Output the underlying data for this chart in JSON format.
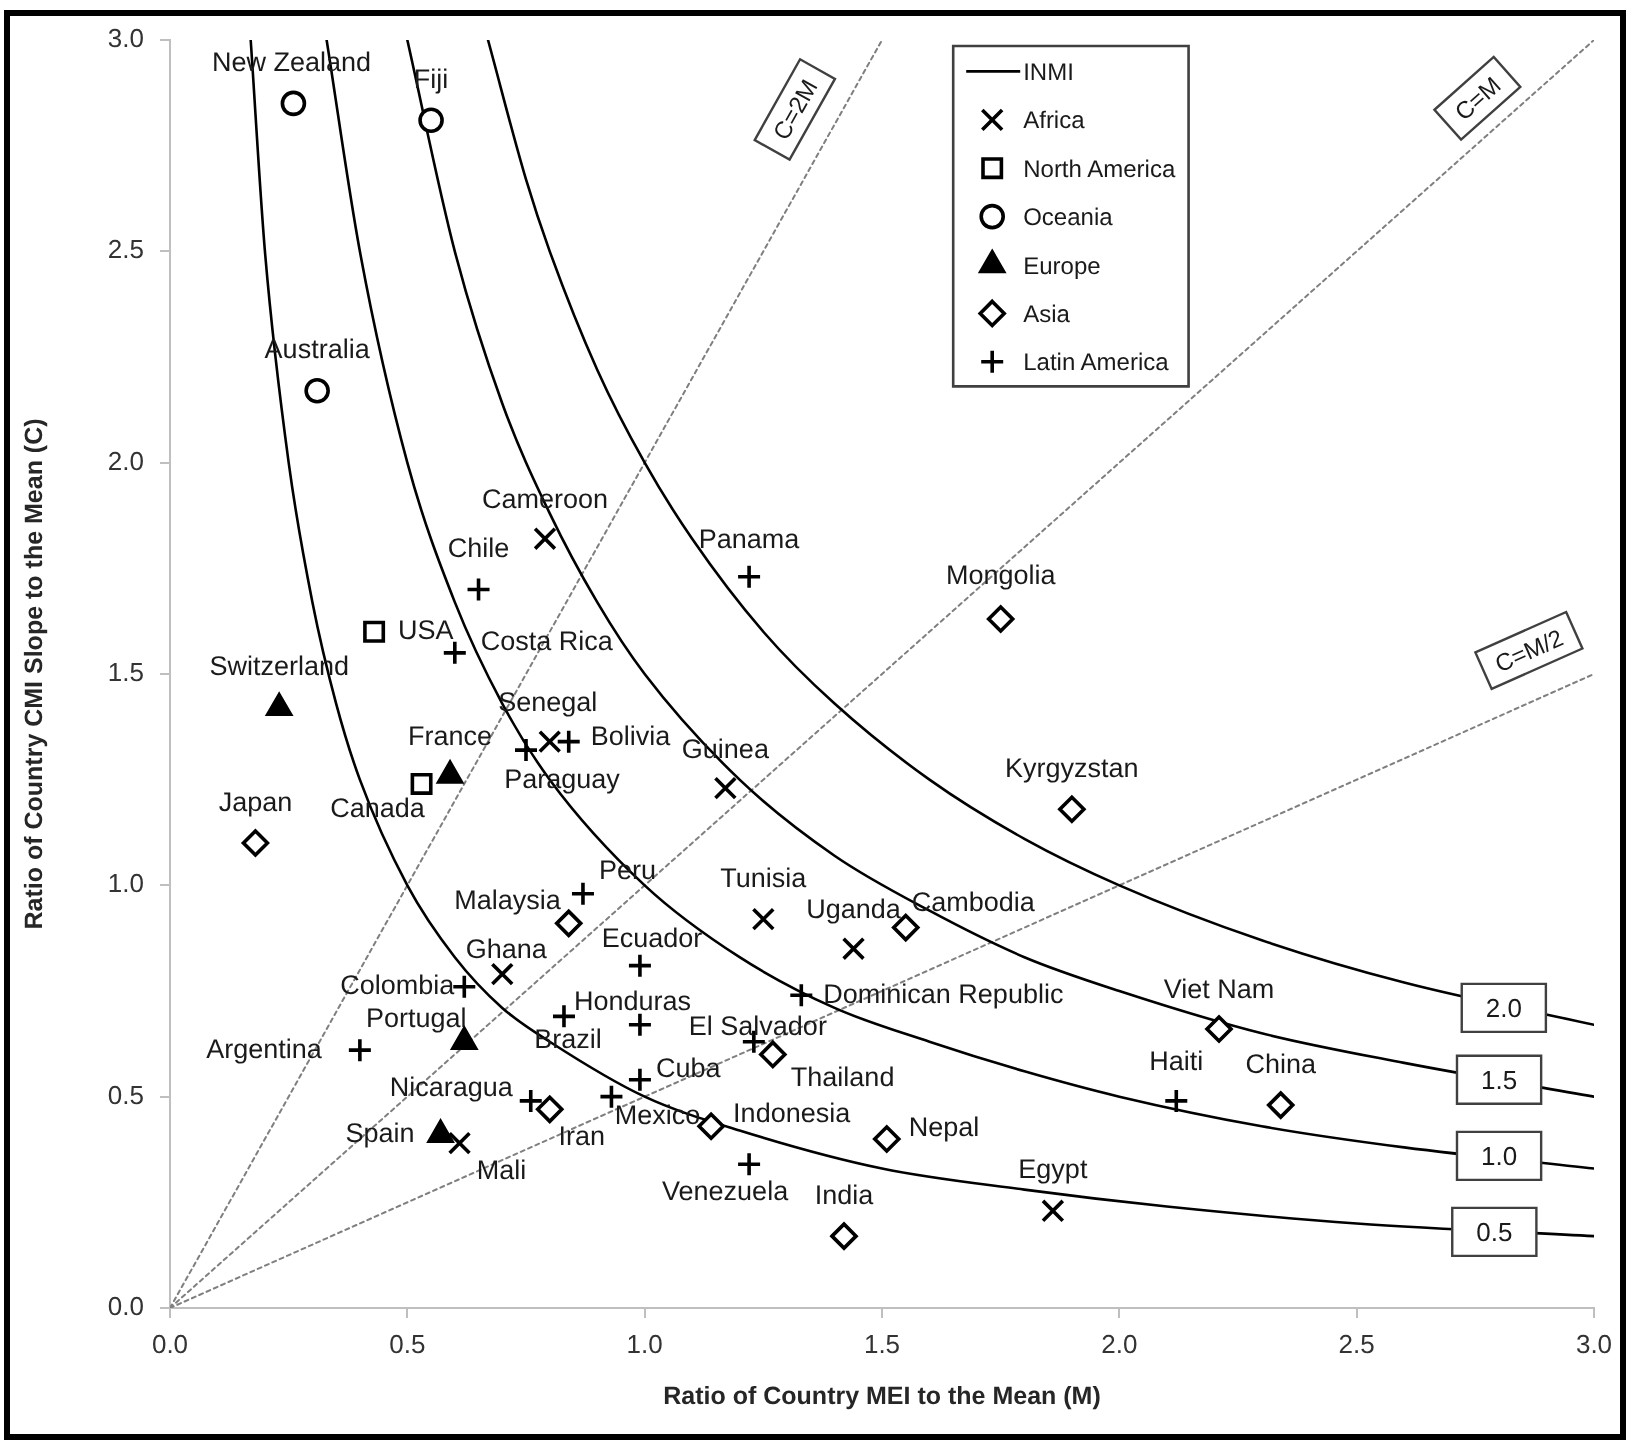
{
  "chart_data": {
    "type": "scatter",
    "xlabel": "Ratio of Country MEI to the Mean (M)",
    "ylabel": "Ratio of Country CMI Slope to the Mean (C)",
    "xlim": [
      0,
      3
    ],
    "ylim": [
      0,
      3
    ],
    "xticks": [
      {
        "value": 0,
        "label": "0.0"
      },
      {
        "value": 0.5,
        "label": "0.5"
      },
      {
        "value": 1,
        "label": "1.0"
      },
      {
        "value": 1.5,
        "label": "1.5"
      },
      {
        "value": 2,
        "label": "2.0"
      },
      {
        "value": 2.5,
        "label": "2.5"
      },
      {
        "value": 3,
        "label": "3.0"
      }
    ],
    "yticks": [
      {
        "value": 0,
        "label": "0.0"
      },
      {
        "value": 0.5,
        "label": "0.5"
      },
      {
        "value": 1,
        "label": "1.0"
      },
      {
        "value": 1.5,
        "label": "1.5"
      },
      {
        "value": 2,
        "label": "2.0"
      },
      {
        "value": 2.5,
        "label": "2.5"
      },
      {
        "value": 3,
        "label": "3.0"
      }
    ],
    "grid": false,
    "legend": "top",
    "series": [
      {
        "name": "INMI",
        "type": "line",
        "color": "#000000",
        "marker": "none",
        "line_style": "solid",
        "x": [
          0.17,
          0.2,
          0.25,
          0.3,
          0.35,
          0.4,
          0.5,
          0.6,
          0.7,
          0.8,
          1.0,
          1.2,
          1.5,
          1.8,
          2.1,
          2.5,
          3.0
        ],
        "values": [
          3.0,
          2.5,
          2.0,
          1.67,
          1.43,
          1.25,
          1.0,
          0.83,
          0.71,
          0.63,
          0.5,
          0.42,
          0.33,
          0.28,
          0.24,
          0.2,
          0.17
        ]
      },
      {
        "type": "line",
        "color": "#000000",
        "marker": "none",
        "line_style": "solid",
        "x": [
          0.33,
          0.4,
          0.5,
          0.6,
          0.7,
          0.8,
          1.0,
          1.2,
          1.4,
          1.6,
          1.8,
          2.0,
          2.3,
          2.6,
          3.0
        ],
        "values": [
          3.0,
          2.5,
          2.0,
          1.67,
          1.43,
          1.25,
          1.0,
          0.83,
          0.71,
          0.63,
          0.56,
          0.5,
          0.43,
          0.38,
          0.33
        ]
      },
      {
        "type": "line",
        "color": "#000000",
        "marker": "none",
        "line_style": "solid",
        "x": [
          0.5,
          0.6,
          0.7,
          0.8,
          0.9,
          1.0,
          1.2,
          1.4,
          1.6,
          1.8,
          2.0,
          2.3,
          2.6,
          3.0
        ],
        "values": [
          3.0,
          2.5,
          2.14,
          1.88,
          1.67,
          1.5,
          1.25,
          1.07,
          0.94,
          0.83,
          0.75,
          0.65,
          0.58,
          0.5
        ]
      },
      {
        "type": "line",
        "color": "#000000",
        "marker": "none",
        "line_style": "solid",
        "x": [
          0.67,
          0.75,
          0.8,
          0.9,
          1.0,
          1.1,
          1.25,
          1.4,
          1.6,
          1.8,
          2.0,
          2.3,
          2.6,
          3.0
        ],
        "values": [
          3.0,
          2.67,
          2.5,
          2.22,
          2.0,
          1.82,
          1.6,
          1.43,
          1.25,
          1.11,
          1.0,
          0.87,
          0.77,
          0.67
        ]
      },
      {
        "name": "C=2M",
        "type": "line",
        "color": "#7f7f7f",
        "marker": "none",
        "line_style": "dotted",
        "x": [
          0,
          1.5
        ],
        "values": [
          0,
          3.0
        ]
      },
      {
        "name": "C=M",
        "type": "line",
        "color": "#7f7f7f",
        "marker": "none",
        "line_style": "dotted",
        "x": [
          0,
          3.0
        ],
        "values": [
          0,
          3.0
        ]
      },
      {
        "name": "C=M/2",
        "type": "line",
        "color": "#7f7f7f",
        "marker": "none",
        "line_style": "dotted",
        "x": [
          0,
          3.0
        ],
        "values": [
          0,
          1.5
        ]
      },
      {
        "name": "Africa",
        "color": "#000000",
        "marker": "x",
        "x": [
          0.79,
          0.8,
          1.17,
          1.25,
          1.44,
          0.7,
          0.61,
          1.86
        ],
        "values": [
          1.82,
          1.34,
          1.23,
          0.92,
          0.85,
          0.79,
          0.39,
          0.23
        ],
        "value_labels": [
          "Cameroon",
          "Senegal",
          "Guinea",
          "Tunisia",
          "Uganda",
          "Ghana",
          "Mali",
          "Egypt"
        ]
      },
      {
        "name": "North America",
        "color": "#000000",
        "marker": "square",
        "x": [
          0.43,
          0.53
        ],
        "values": [
          1.6,
          1.24
        ],
        "value_labels": [
          "USA",
          "Canada"
        ]
      },
      {
        "name": "Oceania",
        "color": "#000000",
        "marker": "circle",
        "x": [
          0.26,
          0.55,
          0.31
        ],
        "values": [
          2.85,
          2.81,
          2.17
        ],
        "value_labels": [
          "New Zealand",
          "Fiji",
          "Australia"
        ]
      },
      {
        "name": "Europe",
        "color": "#000000",
        "marker": "triangle",
        "x": [
          0.23,
          0.59,
          0.62,
          0.57
        ],
        "values": [
          1.42,
          1.26,
          0.63,
          0.41
        ],
        "value_labels": [
          "Switzerland",
          "France",
          "Portugal",
          "Spain"
        ]
      },
      {
        "name": "Asia",
        "color": "#000000",
        "marker": "diamond",
        "x": [
          0.18,
          0.84,
          0.8,
          1.14,
          1.42,
          1.27,
          1.75,
          1.9,
          1.55,
          2.21,
          2.34,
          1.51
        ],
        "values": [
          1.1,
          0.91,
          0.47,
          0.43,
          0.17,
          0.6,
          1.63,
          1.18,
          0.9,
          0.66,
          0.48,
          0.4
        ],
        "value_labels": [
          "Japan",
          "Malaysia",
          "Iran",
          "Indonesia",
          "India",
          "Thailand",
          "Mongolia",
          "Kyrgyzstan",
          "Cambodia",
          "Viet Nam",
          "China",
          "Nepal"
        ]
      },
      {
        "name": "Latin America",
        "color": "#000000",
        "marker": "cross",
        "x": [
          0.65,
          0.6,
          1.22,
          0.75,
          0.84,
          0.87,
          0.99,
          0.62,
          0.4,
          0.83,
          0.99,
          0.99,
          0.93,
          0.76,
          1.22,
          1.23,
          1.33,
          2.12
        ],
        "values": [
          1.7,
          1.55,
          1.73,
          1.32,
          1.34,
          0.98,
          0.81,
          0.76,
          0.61,
          0.69,
          0.67,
          0.54,
          0.5,
          0.49,
          0.34,
          0.63,
          0.74,
          0.49
        ],
        "value_labels": [
          "Chile",
          "Costa Rica",
          "Panama",
          "Paraguay",
          "Bolivia",
          "Peru",
          "Ecuador",
          "Colombia",
          "Argentina",
          "Honduras",
          "Brazil",
          "Cuba",
          "Mexico",
          "Nicaragua",
          "Venezuela",
          "El Salvador",
          "Dominican Republic",
          "Haiti"
        ]
      }
    ],
    "annotations": [
      {
        "text": "2.0",
        "x": 2.81,
        "y": 0.71
      },
      {
        "text": "1.5",
        "x": 2.8,
        "y": 0.54
      },
      {
        "text": "1.0",
        "x": 2.8,
        "y": 0.36
      },
      {
        "text": "0.5",
        "x": 2.79,
        "y": 0.18
      }
    ]
  }
}
